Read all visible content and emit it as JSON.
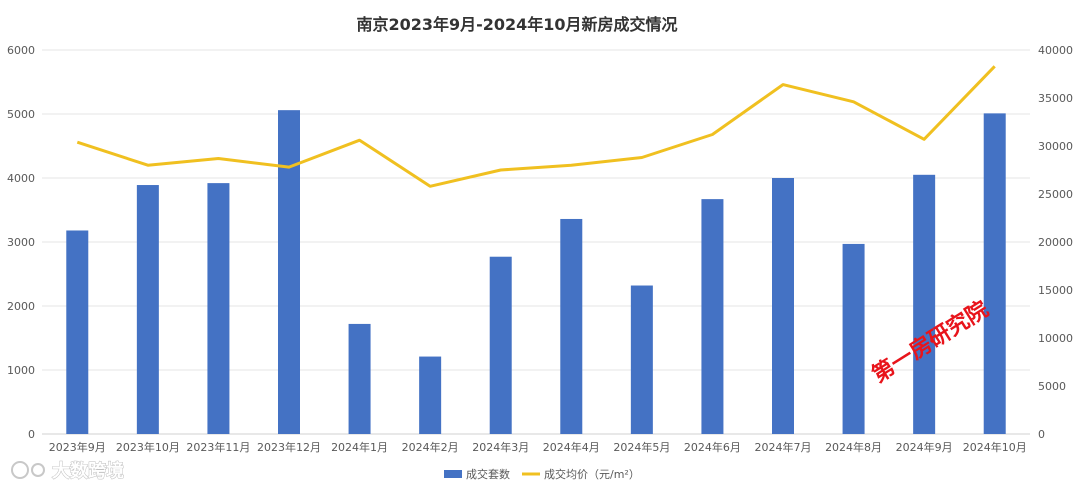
{
  "chart_data": {
    "type": "bar",
    "title": "南京2023年9月-2024年10月新房成交情况",
    "categories": [
      "2023年9月",
      "2023年10月",
      "2023年11月",
      "2023年12月",
      "2024年1月",
      "2024年2月",
      "2024年3月",
      "2024年4月",
      "2024年5月",
      "2024年6月",
      "2024年7月",
      "2024年8月",
      "2024年9月",
      "2024年10月"
    ],
    "series": [
      {
        "name": "成交套数",
        "type": "bar",
        "axis": "left",
        "color": "#4472c4",
        "values": [
          3180,
          3890,
          3920,
          5060,
          1720,
          1210,
          2770,
          3360,
          2320,
          3670,
          4000,
          2970,
          4050,
          5010
        ]
      },
      {
        "name": "成交均价（元/m²）",
        "type": "line",
        "axis": "right",
        "color": "#f0c020",
        "values": [
          30400,
          28000,
          28700,
          27800,
          30600,
          25800,
          27500,
          28000,
          28800,
          31200,
          36400,
          34600,
          30700,
          38300
        ]
      }
    ],
    "y_left": {
      "min": 0,
      "max": 6000,
      "ticks": [
        0,
        1000,
        2000,
        3000,
        4000,
        5000,
        6000
      ]
    },
    "y_right": {
      "min": 0,
      "max": 40000,
      "ticks": [
        0,
        5000,
        10000,
        15000,
        20000,
        25000,
        30000,
        35000,
        40000
      ]
    },
    "grid": true,
    "legend": "bottom-center",
    "xlabel": "",
    "ylabel": ""
  },
  "watermarks": {
    "brand_text": "第一房研究院",
    "logo_text": "大数跨境"
  }
}
